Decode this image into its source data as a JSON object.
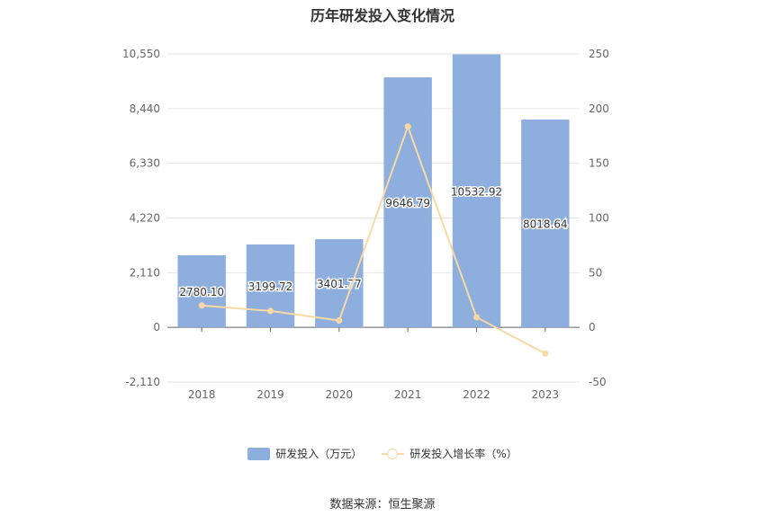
{
  "chart_data": {
    "type": "bar",
    "title": "历年研发投入变化情况",
    "categories": [
      "2018",
      "2019",
      "2020",
      "2021",
      "2022",
      "2023"
    ],
    "series": [
      {
        "name": "研发投入（万元）",
        "type": "bar",
        "axis": "left",
        "values": [
          2780.1,
          3199.72,
          3401.77,
          9646.79,
          10532.92,
          8018.64
        ],
        "labels": [
          "2780.10",
          "3199.72",
          "3401.77",
          "9646.79",
          "10532.92",
          "8018.64"
        ],
        "color": "#8eaede"
      },
      {
        "name": "研发投入增长率（%）",
        "type": "line",
        "axis": "right",
        "values": [
          20,
          15,
          6.3,
          183.6,
          9.2,
          -23.9
        ],
        "color": "#f9d9a3"
      }
    ],
    "y_left": {
      "min": -2110,
      "max": 10550,
      "ticks": [
        -2110,
        0,
        2110,
        4220,
        6330,
        8440,
        10550
      ],
      "tick_labels": [
        "-2,110",
        "0",
        "2,110",
        "4,220",
        "6,330",
        "8,440",
        "10,550"
      ]
    },
    "y_right": {
      "min": -50,
      "max": 250,
      "ticks": [
        -50,
        0,
        50,
        100,
        150,
        200,
        250
      ],
      "tick_labels": [
        "-50",
        "0",
        "50",
        "100",
        "150",
        "200",
        "250"
      ]
    },
    "grid": true,
    "legend_position": "bottom"
  },
  "legend": {
    "bar_label": "研发投入（万元）",
    "line_label": "研发投入增长率（%）"
  },
  "source": "数据来源：恒生聚源"
}
